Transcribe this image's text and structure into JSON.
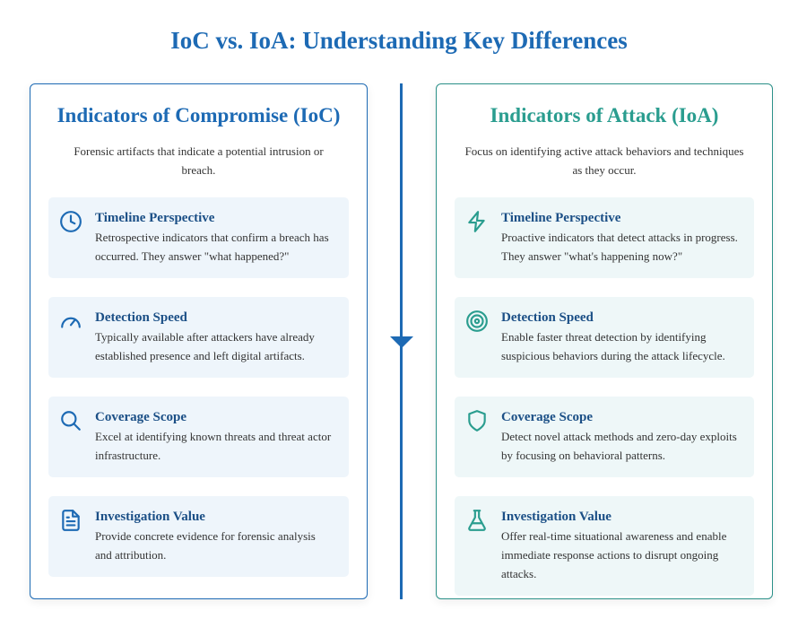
{
  "title": "IoC vs. IoA: Understanding Key Differences",
  "ioc": {
    "heading": "Indicators of Compromise (IoC)",
    "description": "Forensic artifacts that indicate a potential intrusion or breach.",
    "color": "#1d6ab4",
    "items": [
      {
        "icon": "clock-icon",
        "title": "Timeline Perspective",
        "text": "Retrospective indicators that confirm a breach has occurred. They answer \"what happened?\""
      },
      {
        "icon": "gauge-icon",
        "title": "Detection Speed",
        "text": "Typically available after attackers have already established presence and left digital artifacts."
      },
      {
        "icon": "search-icon",
        "title": "Coverage Scope",
        "text": "Excel at identifying known threats and threat actor infrastructure."
      },
      {
        "icon": "document-icon",
        "title": "Investigation Value",
        "text": "Provide concrete evidence for forensic analysis and attribution."
      }
    ]
  },
  "ioa": {
    "heading": "Indicators of Attack (IoA)",
    "description": "Focus on identifying active attack behaviors and techniques as they occur.",
    "color": "#2a9d8f",
    "items": [
      {
        "icon": "lightning-icon",
        "title": "Timeline Perspective",
        "text": "Proactive indicators that detect attacks in progress. They answer \"what's happening now?\""
      },
      {
        "icon": "target-icon",
        "title": "Detection Speed",
        "text": "Enable faster threat detection by identifying suspicious behaviors during the attack lifecycle."
      },
      {
        "icon": "shield-icon",
        "title": "Coverage Scope",
        "text": "Detect novel attack methods and zero-day exploits by focusing on behavioral patterns."
      },
      {
        "icon": "flask-icon",
        "title": "Investigation Value",
        "text": "Offer real-time situational awareness and enable immediate response actions to disrupt ongoing attacks."
      }
    ]
  }
}
